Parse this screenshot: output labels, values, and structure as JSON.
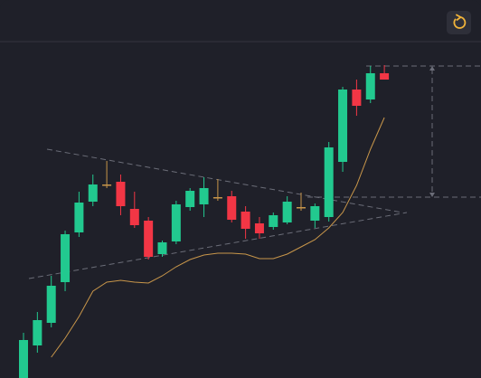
{
  "chart_data": {
    "type": "candlestick",
    "categories": [
      null,
      null,
      null,
      null,
      null,
      null,
      null,
      null,
      null,
      null,
      null,
      null,
      null,
      null,
      null,
      null,
      null,
      null,
      null,
      null,
      null,
      null,
      null,
      null,
      null,
      null,
      null
    ],
    "open": [
      0,
      36,
      61,
      106,
      161,
      195,
      214,
      217,
      187,
      174,
      137,
      151,
      189,
      192,
      200,
      201,
      184,
      171,
      167,
      172,
      189,
      174,
      178,
      239,
      319,
      308,
      337
    ],
    "high": [
      50,
      73,
      113,
      163,
      206,
      225,
      240,
      225,
      206,
      178,
      152,
      196,
      210,
      222,
      220,
      207,
      190,
      178,
      183,
      201,
      205,
      193,
      261,
      322,
      330,
      345,
      346
    ],
    "low": [
      0,
      28,
      56,
      96,
      156,
      190,
      210,
      180,
      166,
      131,
      134,
      148,
      185,
      178,
      196,
      172,
      154,
      154,
      164,
      170,
      185,
      166,
      173,
      228,
      290,
      304,
      330
    ],
    "close": [
      42,
      64,
      102,
      159,
      194,
      214,
      214,
      190,
      169,
      134,
      150,
      192,
      207,
      210,
      200,
      175,
      165,
      160,
      180,
      195,
      189,
      190,
      255,
      319,
      301,
      337,
      330
    ],
    "ma": {
      "color": "#c8964a",
      "values": [
        null,
        null,
        23,
        44,
        68,
        96,
        106,
        108,
        106,
        105,
        113,
        123,
        131,
        136,
        138,
        138,
        137,
        132,
        132,
        137,
        145,
        153,
        166,
        183,
        213,
        253,
        288
      ]
    },
    "up_color": "#22c98f",
    "down_color": "#f23645",
    "flat_color": "#c8964a",
    "ylim": [
      0,
      418
    ]
  }
}
